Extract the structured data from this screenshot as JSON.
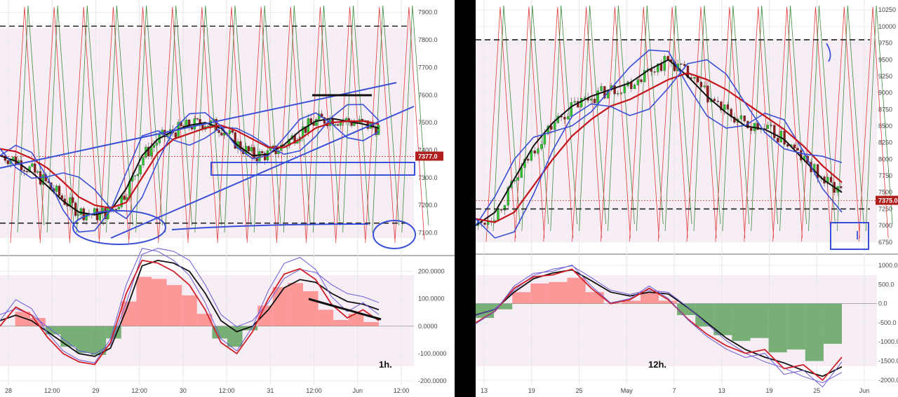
{
  "charts": [
    {
      "id": "left",
      "timeframe_label": "1h.",
      "price_axis": {
        "ticks": [
          "7900.0",
          "7800.0",
          "7700.0",
          "7600.0",
          "7500.0",
          "7400.0",
          "7300.0",
          "7200.0",
          "7100.0"
        ],
        "ylim": [
          7025,
          7945
        ]
      },
      "price_label": {
        "text": "7377.0",
        "value": 7377,
        "color": "#b01e1e"
      },
      "dashed_levels": [
        7850,
        7135
      ],
      "osc_axis": {
        "ticks": [
          "200.0000",
          "100.0000",
          "0.0000",
          "-100.0000",
          "-200.0000"
        ],
        "ylim": [
          -215,
          250
        ]
      },
      "x_axis": {
        "ticks": [
          "28",
          "12:00",
          "29",
          "12:00",
          "30",
          "12:00",
          "31",
          "12:00",
          "Jun",
          "12:00"
        ]
      },
      "chart_data": {
        "type": "line",
        "price_ma_series": [
          {
            "name": "",
            "color": "#111111",
            "values": [
              7380,
              7360,
              7320,
              7270,
              7215,
              7175,
              7165,
              7180,
              7260,
              7380,
              7440,
              7470,
              7490,
              7500,
              7480,
              7420,
              7380,
              7385,
              7420,
              7470,
              7505,
              7515,
              7505,
              7495,
              7480
            ]
          },
          {
            "name": "",
            "color": "#c4141c",
            "values": [
              7405,
              7395,
              7370,
              7335,
              7285,
              7230,
              7200,
              7190,
              7210,
              7300,
              7390,
              7440,
              7460,
              7480,
              7490,
              7470,
              7440,
              7410,
              7410,
              7440,
              7480,
              7500,
              7505,
              7505,
              7495
            ]
          }
        ],
        "oscillator_series": [
          {
            "name": "",
            "color": "#111111",
            "values": [
              20,
              40,
              20,
              -20,
              -60,
              -100,
              -110,
              -80,
              60,
              220,
              240,
              230,
              200,
              120,
              20,
              -20,
              0,
              60,
              140,
              170,
              160,
              120,
              90,
              80,
              60
            ]
          },
          {
            "name": "",
            "color": "#d0202a",
            "values": [
              0,
              70,
              40,
              -40,
              -100,
              -130,
              -140,
              -60,
              120,
              240,
              230,
              200,
              150,
              60,
              -60,
              -100,
              -20,
              100,
              190,
              210,
              170,
              80,
              30,
              60,
              20
            ]
          }
        ]
      }
    },
    {
      "id": "right",
      "timeframe_label": "12h.",
      "price_axis": {
        "ticks": [
          "10250",
          "10000",
          "9750",
          "9500",
          "9250",
          "9000",
          "8750",
          "8500",
          "8250",
          "8000",
          "7750",
          "7500",
          "7250",
          "7000",
          "6750"
        ],
        "ylim": [
          6600,
          10400
        ]
      },
      "price_label": {
        "text": "7375.0",
        "value": 7375,
        "color": "#b01e1e"
      },
      "dashed_levels": [
        9800,
        7250
      ],
      "osc_axis": {
        "ticks": [
          "1000.0",
          "500.0",
          "0.0",
          "-500.0",
          "-1000.0",
          "-1500.0",
          "-2000.0"
        ],
        "ylim": [
          -2130,
          1200
        ]
      },
      "x_axis": {
        "ticks": [
          "13",
          "19",
          "25",
          "May",
          "7",
          "13",
          "19",
          "25",
          "Jun"
        ]
      },
      "chart_data": {
        "type": "line",
        "price_ma_series": [
          {
            "name": "",
            "color": "#111111",
            "values": [
              7000,
              7200,
              7700,
              8200,
              8550,
              8800,
              8950,
              9050,
              9150,
              9350,
              9500,
              9250,
              8950,
              8700,
              8500,
              8450,
              8300,
              8000,
              7700,
              7500
            ]
          },
          {
            "name": "",
            "color": "#c4141c",
            "values": [
              7100,
              7050,
              7200,
              7600,
              8000,
              8350,
              8600,
              8800,
              8900,
              9050,
              9200,
              9300,
              9200,
              9050,
              8850,
              8650,
              8450,
              8200,
              7900,
              7650
            ]
          }
        ],
        "oscillator_series": [
          {
            "name": "",
            "color": "#111111",
            "values": [
              -300,
              -150,
              300,
              650,
              800,
              880,
              600,
              300,
              200,
              300,
              250,
              -100,
              -500,
              -900,
              -1200,
              -1400,
              -1550,
              -1750,
              -1900,
              -1650
            ]
          },
          {
            "name": "",
            "color": "#d0202a",
            "values": [
              -500,
              -200,
              400,
              700,
              750,
              900,
              400,
              0,
              100,
              400,
              100,
              -400,
              -800,
              -1100,
              -1300,
              -1200,
              -1700,
              -1600,
              -2000,
              -1400
            ]
          }
        ]
      }
    }
  ]
}
